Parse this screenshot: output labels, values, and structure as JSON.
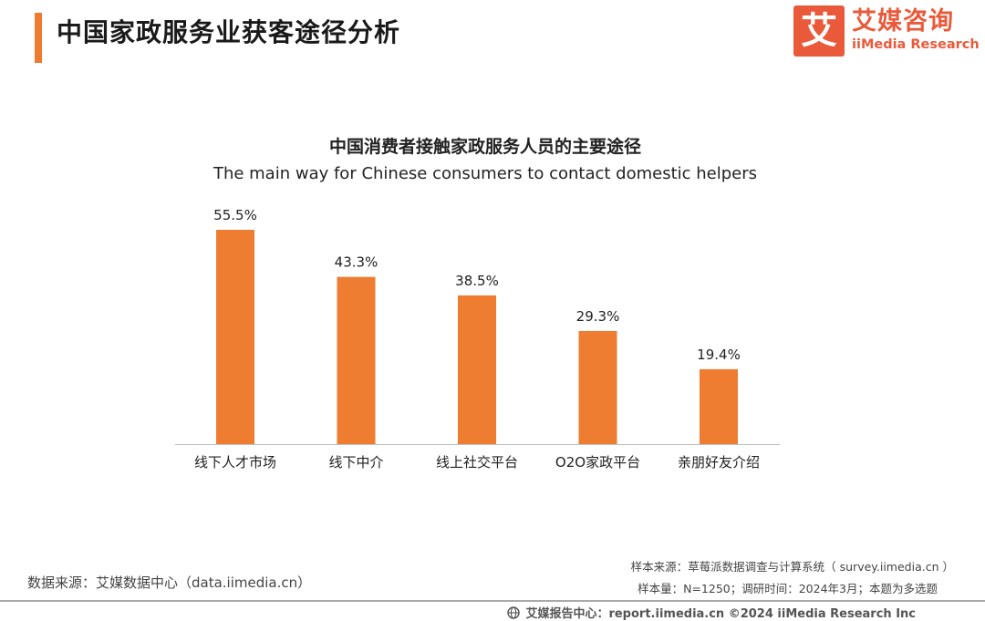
{
  "header": {
    "title": "中国家政服务业获客途径分析",
    "logo": {
      "mark": "艾",
      "cn": "艾媒咨询",
      "en": "iiMedia Research"
    }
  },
  "chart_data": {
    "type": "bar",
    "title": "中国消费者接触家政服务人员的主要途径",
    "subtitle": "The main way for Chinese consumers to contact domestic helpers",
    "categories": [
      "线下人才市场",
      "线下中介",
      "线上社交平台",
      "O2O家政平台",
      "亲朋好友介绍"
    ],
    "values": [
      55.5,
      43.3,
      38.5,
      29.3,
      19.4
    ],
    "value_labels": [
      "55.5%",
      "43.3%",
      "38.5%",
      "29.3%",
      "19.4%"
    ],
    "unit": "%",
    "ylim": [
      0,
      55.5
    ],
    "bar_color": "#ee7d31",
    "grid": false,
    "legend": "none"
  },
  "source": {
    "left": "数据来源：艾媒数据中心（data.iimedia.cn）",
    "sample_source": "样本来源：草莓派数据调查与计算系统（ survey.iimedia.cn ）",
    "sample_info": "样本量：N=1250；调研时间：2024年3月；本题为多选题"
  },
  "footer": {
    "text": "艾媒报告中心：report.iimedia.cn    ©2024  iiMedia Research  Inc"
  }
}
